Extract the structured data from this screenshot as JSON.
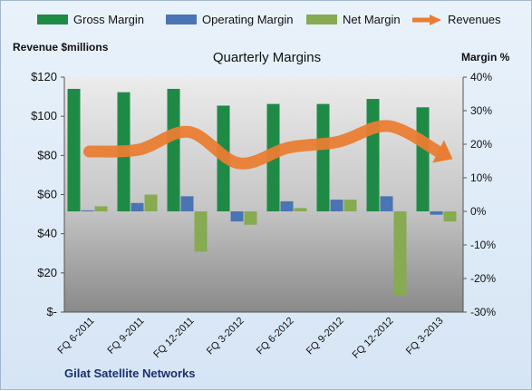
{
  "chart_data": {
    "type": "bar",
    "title": "Quarterly Margins",
    "caption": "Gilat Satellite Networks",
    "categories": [
      "FQ 6-2011",
      "FQ 9-2011",
      "FQ 12-2011",
      "FQ 3-2012",
      "FQ 6-2012",
      "FQ 9-2012",
      "FQ 12-2012",
      "FQ 3-2013"
    ],
    "y_left": {
      "label": "Revenue $millions",
      "ylim": [
        0,
        120
      ],
      "ticks": [
        "$-",
        "$20",
        "$40",
        "$60",
        "$80",
        "$100",
        "$120"
      ]
    },
    "y_right": {
      "label": "Margin %",
      "ylim": [
        -30,
        40
      ],
      "ticks": [
        "-30%",
        "-20%",
        "-10%",
        "0%",
        "10%",
        "20%",
        "30%",
        "40%"
      ]
    },
    "series": [
      {
        "name": "Gross Margin",
        "axis": "right",
        "color": "#1e8a46",
        "values": [
          36.5,
          35.5,
          36.5,
          31.5,
          32,
          32,
          33.5,
          31
        ]
      },
      {
        "name": "Operating Margin",
        "axis": "right",
        "color": "#4a74b4",
        "values": [
          0.3,
          2.5,
          4.5,
          -3,
          3,
          3.5,
          4.5,
          -1
        ]
      },
      {
        "name": "Net Margin",
        "axis": "right",
        "color": "#86ab50",
        "values": [
          1.5,
          5,
          -12,
          -4,
          1,
          3.5,
          -25,
          -3
        ]
      },
      {
        "name": "Revenues",
        "axis": "left",
        "type": "line",
        "color": "#ea7d33",
        "values": [
          82,
          83,
          92,
          76,
          84,
          87,
          95,
          82
        ]
      }
    ],
    "grid": false,
    "legend": "top"
  }
}
